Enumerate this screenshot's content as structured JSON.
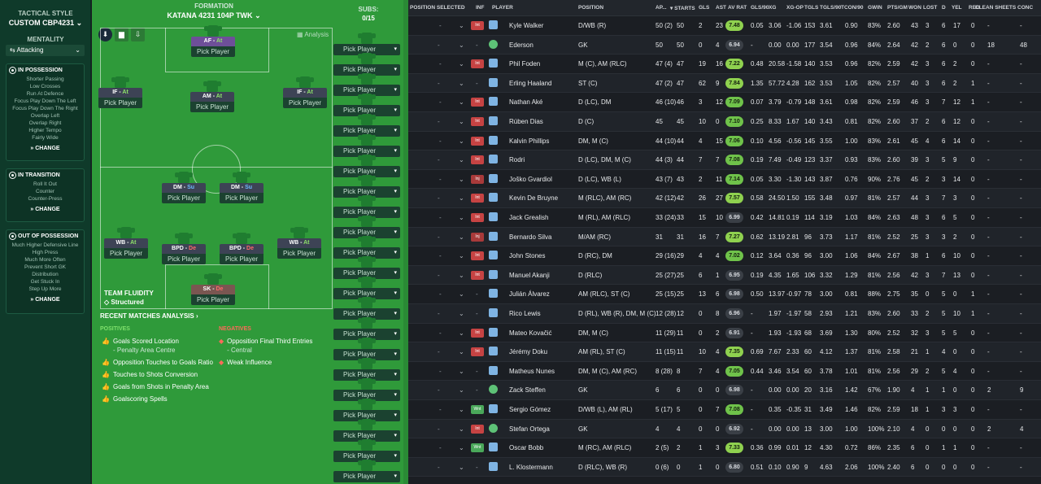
{
  "sidebar": {
    "tactical_style_label": "TACTICAL STYLE",
    "tactic_name": "CUSTOM CBP4231",
    "mentality_label": "MENTALITY",
    "mentality_value": "Attacking",
    "in_possession": {
      "title": "IN POSSESSION",
      "lines": [
        "Shorter Passing",
        "Low Crosses",
        "Run At Defence",
        "Focus Play Down The Left",
        "Focus Play Down The Right",
        "Overlap Left",
        "Overlap Right",
        "Higher Tempo",
        "Fairly Wide"
      ],
      "change": "CHANGE"
    },
    "in_transition": {
      "title": "IN TRANSITION",
      "lines": [
        "Roll It Out",
        "Counter",
        "Counter-Press"
      ],
      "change": "CHANGE"
    },
    "out_possession": {
      "title": "OUT OF POSSESSION",
      "lines": [
        "Much Higher Defensive Line",
        "High Press",
        "Much More Often",
        "Prevent Short GK",
        "Distribution",
        "Get Stuck In",
        "Step Up More"
      ],
      "change": "CHANGE"
    }
  },
  "pitch": {
    "formation_label": "FORMATION",
    "formation_name": "KATANA 4231 104P TWK",
    "subs_label": "SUBS:",
    "subs_count": "0/15",
    "analysis_label": "Analysis",
    "pick_label": "Pick Player",
    "fluidity_label": "TEAM FLUIDITY",
    "fluidity_value": "Structured",
    "players": [
      {
        "pos": "AF",
        "duty": "At"
      },
      {
        "pos": "IF",
        "duty": "At"
      },
      {
        "pos": "AM",
        "duty": "At"
      },
      {
        "pos": "IF",
        "duty": "At"
      },
      {
        "pos": "DM",
        "duty": "Su"
      },
      {
        "pos": "DM",
        "duty": "Su"
      },
      {
        "pos": "WB",
        "duty": "At"
      },
      {
        "pos": "BPD",
        "duty": "De"
      },
      {
        "pos": "BPD",
        "duty": "De"
      },
      {
        "pos": "WB",
        "duty": "At"
      },
      {
        "pos": "SK",
        "duty": "De"
      }
    ],
    "sub_picks": [
      "Pick Player",
      "Pick Player",
      "Pick Player",
      "Pick Player",
      "Pick Player",
      "Pick Player",
      "Pick Player",
      "Pick Player",
      "Pick Player",
      "Pick Player",
      "Pick Player",
      "Pick Player",
      "Pick Player",
      "Pick Player",
      "Pick Player",
      "Pick Player",
      "Pick Player",
      "Pick Player",
      "Pick Player",
      "Pick Player",
      "Pick Player",
      "Pick Player"
    ],
    "recent_title": "RECENT MATCHES ANALYSIS",
    "positives_label": "POSITIVES",
    "negatives_label": "NEGATIVES",
    "positives": [
      {
        "text": "Goals Scored Location",
        "sub": "- Penalty Area Centre"
      },
      {
        "text": "Opposition Touches to Goals Ratio",
        "sub": ""
      },
      {
        "text": "Touches to Shots Conversion",
        "sub": ""
      },
      {
        "text": "Goals from Shots in Penalty Area",
        "sub": ""
      },
      {
        "text": "Goalscoring Spells",
        "sub": ""
      }
    ],
    "negatives": [
      {
        "text": "Opposition Final Third Entries",
        "sub": "- Central"
      },
      {
        "text": "Weak Influence",
        "sub": ""
      }
    ]
  },
  "table": {
    "headers": [
      "POSITION SELECTED",
      "INF",
      "PLAYER",
      "POSITION",
      "AP...",
      "▾ STARTS",
      "GLS",
      "AST",
      "AV RAT",
      "GLS/90",
      "XG",
      "XG-OP",
      "TGLS",
      "TGLS/90",
      "TCON/90",
      "GWIN",
      "PTS/GM",
      "WON",
      "LOST",
      "D",
      "YEL",
      "RED",
      "CLEAN SHEETS",
      "CONC"
    ],
    "rows": [
      {
        "inf": "Int",
        "player": "Kyle Walker",
        "pos": "D/WB (R)",
        "ap": "50 (2)",
        "starts": "50",
        "gls": "2",
        "ast": "23",
        "rat": "7.48",
        "gls90": "0.05",
        "xg": "3.06",
        "xgop": "-1.06",
        "tgls": "153",
        "tgls90": "3.61",
        "tcon90": "0.90",
        "gwin": "83%",
        "ptsgm": "2.60",
        "won": "43",
        "lost": "3",
        "d": "6",
        "yel": "17",
        "red": "0",
        "cs": "-",
        "conc": "-"
      },
      {
        "inf": "",
        "player": "Ederson",
        "pos": "GK",
        "ap": "50",
        "starts": "50",
        "gls": "0",
        "ast": "4",
        "rat": "6.94",
        "gls90": "-",
        "xg": "0.00",
        "xgop": "0.00",
        "tgls": "177",
        "tgls90": "3.54",
        "tcon90": "0.96",
        "gwin": "84%",
        "ptsgm": "2.64",
        "won": "42",
        "lost": "2",
        "d": "6",
        "yel": "0",
        "red": "0",
        "cs": "18",
        "conc": "48"
      },
      {
        "inf": "Int",
        "player": "Phil Foden",
        "pos": "M (C), AM (RLC)",
        "ap": "47 (4)",
        "starts": "47",
        "gls": "19",
        "ast": "16",
        "rat": "7.22",
        "gls90": "0.48",
        "xg": "20.58",
        "xgop": "-1.58",
        "tgls": "140",
        "tgls90": "3.53",
        "tcon90": "0.96",
        "gwin": "82%",
        "ptsgm": "2.59",
        "won": "42",
        "lost": "3",
        "d": "6",
        "yel": "2",
        "red": "0",
        "cs": "-",
        "conc": "-"
      },
      {
        "inf": "",
        "player": "Erling Haaland",
        "pos": "ST (C)",
        "ap": "47 (2)",
        "starts": "47",
        "gls": "62",
        "ast": "9",
        "rat": "7.84",
        "gls90": "1.35",
        "xg": "57.72",
        "xgop": "4.28",
        "tgls": "162",
        "tgls90": "3.53",
        "tcon90": "1.05",
        "gwin": "82%",
        "ptsgm": "2.57",
        "won": "40",
        "lost": "3",
        "d": "6",
        "yel": "2",
        "red": "1",
        "cs": "-",
        "conc": "-"
      },
      {
        "inf": "Int",
        "player": "Nathan Aké",
        "pos": "D (LC), DM",
        "ap": "46 (10)",
        "starts": "46",
        "gls": "3",
        "ast": "12",
        "rat": "7.09",
        "gls90": "0.07",
        "xg": "3.79",
        "xgop": "-0.79",
        "tgls": "148",
        "tgls90": "3.61",
        "tcon90": "0.98",
        "gwin": "82%",
        "ptsgm": "2.59",
        "won": "46",
        "lost": "3",
        "d": "7",
        "yel": "12",
        "red": "1",
        "cs": "-",
        "conc": "-"
      },
      {
        "inf": "Int",
        "player": "Rúben Dias",
        "pos": "D (C)",
        "ap": "45",
        "starts": "45",
        "gls": "10",
        "ast": "0",
        "rat": "7.10",
        "gls90": "0.25",
        "xg": "8.33",
        "xgop": "1.67",
        "tgls": "140",
        "tgls90": "3.43",
        "tcon90": "0.81",
        "gwin": "82%",
        "ptsgm": "2.60",
        "won": "37",
        "lost": "2",
        "d": "6",
        "yel": "12",
        "red": "0",
        "cs": "-",
        "conc": "-"
      },
      {
        "inf": "Int",
        "player": "Kalvin Phillips",
        "pos": "DM, M (C)",
        "ap": "44 (10)",
        "starts": "44",
        "gls": "4",
        "ast": "15",
        "rat": "7.06",
        "gls90": "0.10",
        "xg": "4.56",
        "xgop": "-0.56",
        "tgls": "145",
        "tgls90": "3.55",
        "tcon90": "1.00",
        "gwin": "83%",
        "ptsgm": "2.61",
        "won": "45",
        "lost": "4",
        "d": "6",
        "yel": "14",
        "red": "0",
        "cs": "-",
        "conc": "-"
      },
      {
        "inf": "Int",
        "player": "Rodri",
        "pos": "D (LC), DM, M (C)",
        "ap": "44 (3)",
        "starts": "44",
        "gls": "7",
        "ast": "7",
        "rat": "7.08",
        "gls90": "0.19",
        "xg": "7.49",
        "xgop": "-0.49",
        "tgls": "123",
        "tgls90": "3.37",
        "tcon90": "0.93",
        "gwin": "83%",
        "ptsgm": "2.60",
        "won": "39",
        "lost": "3",
        "d": "5",
        "yel": "9",
        "red": "0",
        "cs": "-",
        "conc": "-"
      },
      {
        "inf": "Inj",
        "player": "Joško Gvardiol",
        "pos": "D (LC), WB (L)",
        "ap": "43 (7)",
        "starts": "43",
        "gls": "2",
        "ast": "11",
        "rat": "7.14",
        "gls90": "0.05",
        "xg": "3.30",
        "xgop": "-1.30",
        "tgls": "143",
        "tgls90": "3.87",
        "tcon90": "0.76",
        "gwin": "90%",
        "ptsgm": "2.76",
        "won": "45",
        "lost": "2",
        "d": "3",
        "yel": "14",
        "red": "0",
        "cs": "-",
        "conc": "-"
      },
      {
        "inf": "Int",
        "player": "Kevin De Bruyne",
        "pos": "M (RLC), AM (RC)",
        "ap": "42 (12)",
        "starts": "42",
        "gls": "26",
        "ast": "27",
        "rat": "7.57",
        "gls90": "0.58",
        "xg": "24.50",
        "xgop": "1.50",
        "tgls": "155",
        "tgls90": "3.48",
        "tcon90": "0.97",
        "gwin": "81%",
        "ptsgm": "2.57",
        "won": "44",
        "lost": "3",
        "d": "7",
        "yel": "3",
        "red": "0",
        "cs": "-",
        "conc": "-"
      },
      {
        "inf": "Int",
        "player": "Jack Grealish",
        "pos": "M (RL), AM (RLC)",
        "ap": "33 (24)",
        "starts": "33",
        "gls": "15",
        "ast": "10",
        "rat": "6.99",
        "gls90": "0.42",
        "xg": "14.81",
        "xgop": "0.19",
        "tgls": "114",
        "tgls90": "3.19",
        "tcon90": "1.03",
        "gwin": "84%",
        "ptsgm": "2.63",
        "won": "48",
        "lost": "3",
        "d": "6",
        "yel": "5",
        "red": "0",
        "cs": "-",
        "conc": "-"
      },
      {
        "inf": "Inj",
        "player": "Bernardo Silva",
        "pos": "M/AM (RC)",
        "ap": "31",
        "starts": "31",
        "gls": "16",
        "ast": "7",
        "rat": "7.27",
        "gls90": "0.62",
        "xg": "13.19",
        "xgop": "2.81",
        "tgls": "96",
        "tgls90": "3.73",
        "tcon90": "1.17",
        "gwin": "81%",
        "ptsgm": "2.52",
        "won": "25",
        "lost": "3",
        "d": "3",
        "yel": "2",
        "red": "0",
        "cs": "-",
        "conc": "-"
      },
      {
        "inf": "Int",
        "player": "John Stones",
        "pos": "D (RC), DM",
        "ap": "29 (16)",
        "starts": "29",
        "gls": "4",
        "ast": "4",
        "rat": "7.02",
        "gls90": "0.12",
        "xg": "3.64",
        "xgop": "0.36",
        "tgls": "96",
        "tgls90": "3.00",
        "tcon90": "1.06",
        "gwin": "84%",
        "ptsgm": "2.67",
        "won": "38",
        "lost": "1",
        "d": "6",
        "yel": "10",
        "red": "0",
        "cs": "-",
        "conc": "-"
      },
      {
        "inf": "Int",
        "player": "Manuel Akanji",
        "pos": "D (RLC)",
        "ap": "25 (27)",
        "starts": "25",
        "gls": "6",
        "ast": "1",
        "rat": "6.95",
        "gls90": "0.19",
        "xg": "4.35",
        "xgop": "1.65",
        "tgls": "106",
        "tgls90": "3.32",
        "tcon90": "1.29",
        "gwin": "81%",
        "ptsgm": "2.56",
        "won": "42",
        "lost": "3",
        "d": "7",
        "yel": "13",
        "red": "0",
        "cs": "-",
        "conc": "-"
      },
      {
        "inf": "",
        "player": "Julián Álvarez",
        "pos": "AM (RLC), ST (C)",
        "ap": "25 (15)",
        "starts": "25",
        "gls": "13",
        "ast": "6",
        "rat": "6.98",
        "gls90": "0.50",
        "xg": "13.97",
        "xgop": "-0.97",
        "tgls": "78",
        "tgls90": "3.00",
        "tcon90": "0.81",
        "gwin": "88%",
        "ptsgm": "2.75",
        "won": "35",
        "lost": "0",
        "d": "5",
        "yel": "0",
        "red": "1",
        "cs": "-",
        "conc": "-"
      },
      {
        "inf": "",
        "player": "Rico Lewis",
        "pos": "D (RL), WB (R), DM, M (C)",
        "ap": "12 (28)",
        "starts": "12",
        "gls": "0",
        "ast": "8",
        "rat": "6.96",
        "gls90": "-",
        "xg": "1.97",
        "xgop": "-1.97",
        "tgls": "58",
        "tgls90": "2.93",
        "tcon90": "1.21",
        "gwin": "83%",
        "ptsgm": "2.60",
        "won": "33",
        "lost": "2",
        "d": "5",
        "yel": "10",
        "red": "1",
        "cs": "-",
        "conc": "-"
      },
      {
        "inf": "Int",
        "player": "Mateo Kovačić",
        "pos": "DM, M (C)",
        "ap": "11 (29)",
        "starts": "11",
        "gls": "0",
        "ast": "2",
        "rat": "6.91",
        "gls90": "-",
        "xg": "1.93",
        "xgop": "-1.93",
        "tgls": "68",
        "tgls90": "3.69",
        "tcon90": "1.30",
        "gwin": "80%",
        "ptsgm": "2.52",
        "won": "32",
        "lost": "3",
        "d": "5",
        "yel": "5",
        "red": "0",
        "cs": "-",
        "conc": "-"
      },
      {
        "inf": "Int",
        "player": "Jérémy Doku",
        "pos": "AM (RL), ST (C)",
        "ap": "11 (15)",
        "starts": "11",
        "gls": "10",
        "ast": "4",
        "rat": "7.35",
        "gls90": "0.69",
        "xg": "7.67",
        "xgop": "2.33",
        "tgls": "60",
        "tgls90": "4.12",
        "tcon90": "1.37",
        "gwin": "81%",
        "ptsgm": "2.58",
        "won": "21",
        "lost": "1",
        "d": "4",
        "yel": "0",
        "red": "0",
        "cs": "-",
        "conc": "-"
      },
      {
        "inf": "",
        "player": "Matheus Nunes",
        "pos": "DM, M (C), AM (RC)",
        "ap": "8 (28)",
        "starts": "8",
        "gls": "7",
        "ast": "4",
        "rat": "7.05",
        "gls90": "0.44",
        "xg": "3.46",
        "xgop": "3.54",
        "tgls": "60",
        "tgls90": "3.78",
        "tcon90": "1.01",
        "gwin": "81%",
        "ptsgm": "2.56",
        "won": "29",
        "lost": "2",
        "d": "5",
        "yel": "4",
        "red": "0",
        "cs": "-",
        "conc": "-"
      },
      {
        "inf": "",
        "player": "Zack Steffen",
        "pos": "GK",
        "ap": "6",
        "starts": "6",
        "gls": "0",
        "ast": "0",
        "rat": "6.98",
        "gls90": "-",
        "xg": "0.00",
        "xgop": "0.00",
        "tgls": "20",
        "tgls90": "3.16",
        "tcon90": "1.42",
        "gwin": "67%",
        "ptsgm": "1.90",
        "won": "4",
        "lost": "1",
        "d": "1",
        "yel": "0",
        "red": "0",
        "cs": "2",
        "conc": "9"
      },
      {
        "inf": "Wnt",
        "player": "Sergio Gómez",
        "pos": "D/WB (L), AM (RL)",
        "ap": "5 (17)",
        "starts": "5",
        "gls": "0",
        "ast": "7",
        "rat": "7.08",
        "gls90": "-",
        "xg": "0.35",
        "xgop": "-0.35",
        "tgls": "31",
        "tgls90": "3.49",
        "tcon90": "1.46",
        "gwin": "82%",
        "ptsgm": "2.59",
        "won": "18",
        "lost": "1",
        "d": "3",
        "yel": "3",
        "red": "0",
        "cs": "-",
        "conc": "-"
      },
      {
        "inf": "Int",
        "player": "Stefan Ortega",
        "pos": "GK",
        "ap": "4",
        "starts": "4",
        "gls": "0",
        "ast": "0",
        "rat": "6.92",
        "gls90": "-",
        "xg": "0.00",
        "xgop": "0.00",
        "tgls": "13",
        "tgls90": "3.00",
        "tcon90": "1.00",
        "gwin": "100%",
        "ptsgm": "2.10",
        "won": "4",
        "lost": "0",
        "d": "0",
        "yel": "0",
        "red": "0",
        "cs": "2",
        "conc": "4"
      },
      {
        "inf": "Wnt",
        "player": "Oscar Bobb",
        "pos": "M (RC), AM (RLC)",
        "ap": "2 (5)",
        "starts": "2",
        "gls": "1",
        "ast": "3",
        "rat": "7.33",
        "gls90": "0.36",
        "xg": "0.99",
        "xgop": "0.01",
        "tgls": "12",
        "tgls90": "4.30",
        "tcon90": "0.72",
        "gwin": "86%",
        "ptsgm": "2.35",
        "won": "6",
        "lost": "0",
        "d": "1",
        "yel": "1",
        "red": "0",
        "cs": "-",
        "conc": "-"
      },
      {
        "inf": "",
        "player": "L. Klostermann",
        "pos": "D (RLC), WB (R)",
        "ap": "0 (6)",
        "starts": "0",
        "gls": "1",
        "ast": "0",
        "rat": "6.80",
        "gls90": "0.51",
        "xg": "0.10",
        "xgop": "0.90",
        "tgls": "9",
        "tgls90": "4.63",
        "tcon90": "2.06",
        "gwin": "100%",
        "ptsgm": "2.40",
        "won": "6",
        "lost": "0",
        "d": "0",
        "yel": "0",
        "red": "0",
        "cs": "-",
        "conc": "-"
      }
    ]
  }
}
